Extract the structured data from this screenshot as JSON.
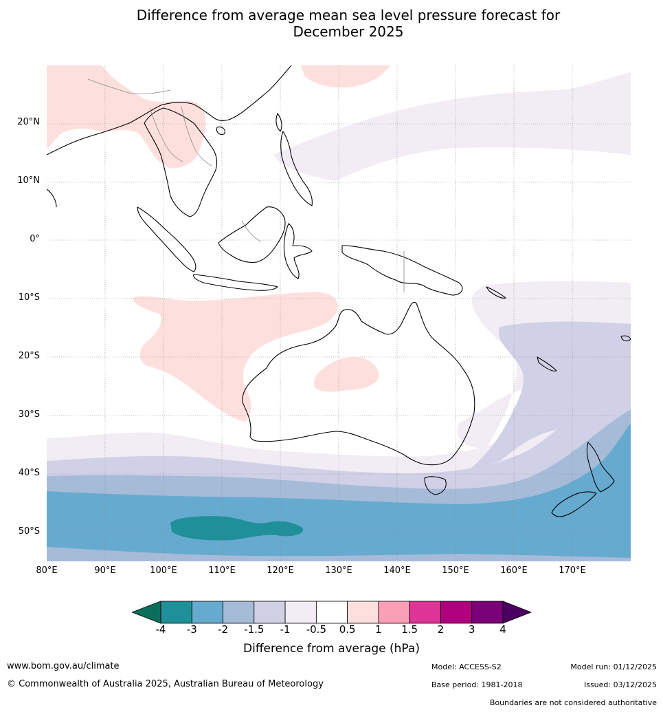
{
  "title": {
    "line1": "Difference from average mean sea level pressure forecast for",
    "line2": "December 2025"
  },
  "map": {
    "lon_min": 80,
    "lon_max": 180,
    "lat_min": -55,
    "lat_max": 30,
    "lat_ticks": [
      {
        "value": 20,
        "label": "20°N"
      },
      {
        "value": 10,
        "label": "10°N"
      },
      {
        "value": 0,
        "label": "0°"
      },
      {
        "value": -10,
        "label": "10°S"
      },
      {
        "value": -20,
        "label": "20°S"
      },
      {
        "value": -30,
        "label": "30°S"
      },
      {
        "value": -40,
        "label": "40°S"
      },
      {
        "value": -50,
        "label": "50°S"
      }
    ],
    "lon_ticks": [
      {
        "value": 80,
        "label": "80°E"
      },
      {
        "value": 90,
        "label": "90°E"
      },
      {
        "value": 100,
        "label": "100°E"
      },
      {
        "value": 110,
        "label": "110°E"
      },
      {
        "value": 120,
        "label": "120°E"
      },
      {
        "value": 130,
        "label": "130°E"
      },
      {
        "value": 140,
        "label": "140°E"
      },
      {
        "value": 150,
        "label": "150°E"
      },
      {
        "value": 160,
        "label": "160°E"
      },
      {
        "value": 170,
        "label": "170°E"
      }
    ]
  },
  "colorbar": {
    "title": "Difference from average (hPa)",
    "low_extend_color": "#0b6e5a",
    "high_extend_color": "#4b0060",
    "bins": [
      {
        "from": -4,
        "to": -3,
        "color": "#1f9099"
      },
      {
        "from": -3,
        "to": -2,
        "color": "#66aacf"
      },
      {
        "from": -2,
        "to": -1.5,
        "color": "#a6bbd8"
      },
      {
        "from": -1.5,
        "to": -1,
        "color": "#d0d1e6"
      },
      {
        "from": -1,
        "to": -0.5,
        "color": "#f2ecf5"
      },
      {
        "from": -0.5,
        "to": 0.5,
        "color": "#ffffff"
      },
      {
        "from": 0.5,
        "to": 1,
        "color": "#fde0dd"
      },
      {
        "from": 1,
        "to": 1.5,
        "color": "#fa9fb5"
      },
      {
        "from": 1.5,
        "to": 2,
        "color": "#dd3497"
      },
      {
        "from": 2,
        "to": 3,
        "color": "#ae017e"
      },
      {
        "from": 3,
        "to": 4,
        "color": "#7a0177"
      }
    ],
    "tick_labels": [
      "-4",
      "-3",
      "-2",
      "-1.5",
      "-1",
      "-0.5",
      "0.5",
      "1",
      "1.5",
      "2",
      "3",
      "4"
    ]
  },
  "footer": {
    "url": "www.bom.gov.au/climate",
    "copyright": "© Commonwealth of Australia 2025, Australian Bureau of Meteorology",
    "model": "Model: ACCESS-S2",
    "base_period": "Base period: 1981-2018",
    "model_run": "Model run: 01/12/2025",
    "issued": "Issued: 03/12/2025",
    "disclaimer": "Boundaries are not considered authoritative"
  }
}
